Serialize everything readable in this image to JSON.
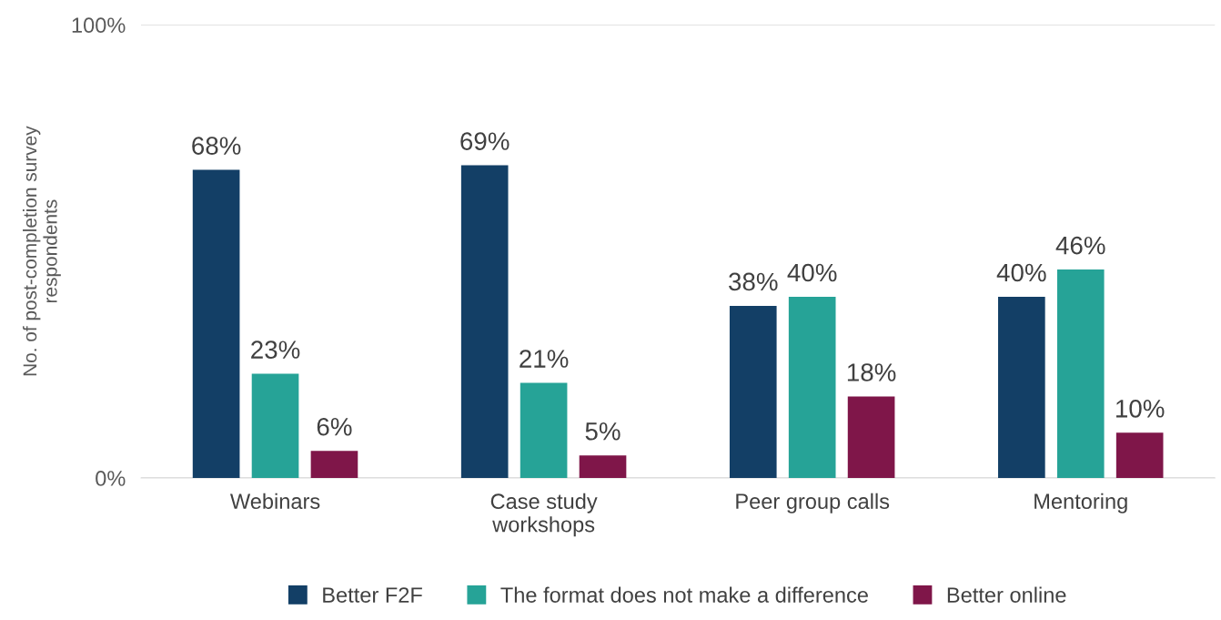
{
  "chart_data": {
    "type": "bar",
    "ylabel": "No. of post-completion survey\nrespondents",
    "categories": [
      "Webinars",
      "Case study\nworkshops",
      "Peer group calls",
      "Mentoring"
    ],
    "series": [
      {
        "name": "Better F2F",
        "color": "#133f66",
        "values": [
          68,
          69,
          38,
          40
        ]
      },
      {
        "name": "The format does not make a difference",
        "color": "#26a397",
        "values": [
          23,
          21,
          40,
          46
        ]
      },
      {
        "name": "Better online",
        "color": "#7f1649",
        "values": [
          6,
          5,
          18,
          10
        ]
      }
    ],
    "ylim": [
      0,
      100
    ],
    "yticks": [
      {
        "value": 0,
        "label": "0%"
      },
      {
        "value": 100,
        "label": "100%"
      }
    ],
    "value_labels": [
      [
        "68%",
        "69%",
        "38%",
        "40%"
      ],
      [
        "23%",
        "21%",
        "40%",
        "46%"
      ],
      [
        "6%",
        "5%",
        "18%",
        "10%"
      ]
    ],
    "grid": "y",
    "legend": "bottom"
  }
}
